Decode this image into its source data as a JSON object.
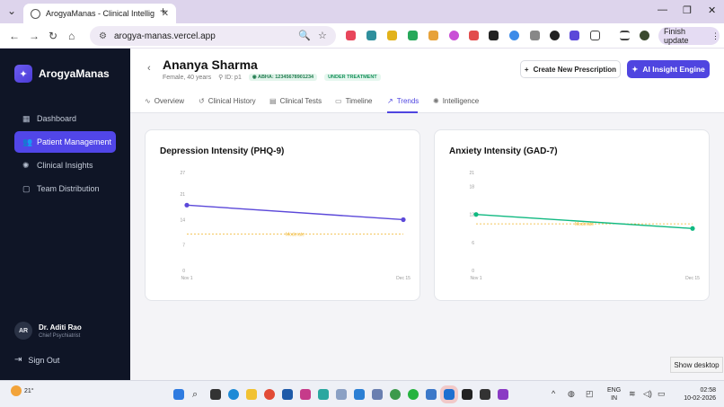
{
  "browser": {
    "tab_title": "ArogyaManas - Clinical Intellig",
    "url": "arogya-manas.vercel.app",
    "finish_update_label": "Finish update"
  },
  "sidebar": {
    "app_name": "ArogyaManas",
    "items": [
      {
        "label": "Dashboard",
        "icon": "grid-icon",
        "active": false
      },
      {
        "label": "Patient Management",
        "icon": "users-icon",
        "active": true
      },
      {
        "label": "Clinical Insights",
        "icon": "brain-icon",
        "active": false
      },
      {
        "label": "Team Distribution",
        "icon": "chat-icon",
        "active": false
      }
    ],
    "user": {
      "initials": "AR",
      "name": "Dr. Aditi Rao",
      "role": "Chief Psychiatrist"
    },
    "sign_out_label": "Sign Out"
  },
  "patient": {
    "name": "Ananya Sharma",
    "demographics": "Female, 40 years",
    "id": "ID: p1",
    "abha": "ABHA: 12345678901234",
    "status": "UNDER TREATMENT"
  },
  "actions": {
    "new_prescription": "Create New Prescription",
    "ai_engine": "AI Insight Engine"
  },
  "tabs": [
    {
      "label": "Overview",
      "icon": "pulse-icon"
    },
    {
      "label": "Clinical History",
      "icon": "history-icon"
    },
    {
      "label": "Clinical Tests",
      "icon": "clipboard-icon"
    },
    {
      "label": "Timeline",
      "icon": "calendar-icon"
    },
    {
      "label": "Trends",
      "icon": "trend-icon",
      "active": true
    },
    {
      "label": "Intelligence",
      "icon": "brain-icon"
    }
  ],
  "chart_data": [
    {
      "type": "line",
      "title": "Depression Intensity (PHQ-9)",
      "x": [
        "Nov 1",
        "Dec 15"
      ],
      "series": [
        {
          "values": [
            18,
            14
          ],
          "color": "#5b48d9"
        }
      ],
      "yticks": [
        0,
        7,
        14,
        21,
        27
      ],
      "ylim": [
        0,
        27
      ],
      "reference_line": {
        "label": "Moderate",
        "value": 10,
        "color": "#f0b429"
      }
    },
    {
      "type": "line",
      "title": "Anxiety Intensity (GAD-7)",
      "x": [
        "Nov 1",
        "Dec 15"
      ],
      "series": [
        {
          "values": [
            12,
            9
          ],
          "color": "#10b981"
        }
      ],
      "yticks": [
        0,
        6,
        12,
        18,
        21
      ],
      "ylim": [
        0,
        21
      ],
      "reference_line": {
        "label": "Moderate",
        "value": 10,
        "color": "#f0b429"
      }
    }
  ],
  "desktop": {
    "show_desktop": "Show desktop",
    "weather_temp": "21°",
    "lang_line1": "ENG",
    "lang_line2": "IN",
    "time": "02:58",
    "date": "10-02-2026"
  }
}
